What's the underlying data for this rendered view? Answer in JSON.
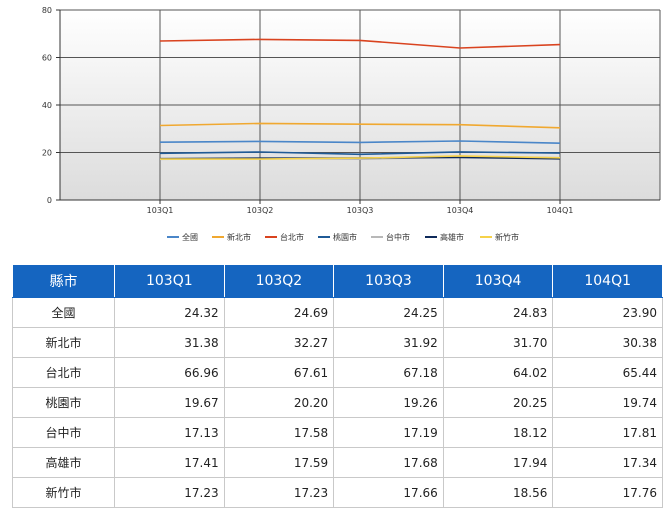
{
  "chart_data": {
    "type": "line",
    "categories": [
      "103Q1",
      "103Q2",
      "103Q3",
      "103Q4",
      "104Q1"
    ],
    "ylim": [
      0,
      80
    ],
    "yticks": [
      0,
      20,
      40,
      60,
      80
    ],
    "legend_position": "bottom",
    "grid": true,
    "series": [
      {
        "name": "全國",
        "color": "#4a86c8",
        "values": [
          24.32,
          24.69,
          24.25,
          24.83,
          23.9
        ]
      },
      {
        "name": "新北市",
        "color": "#f0a830",
        "values": [
          31.38,
          32.27,
          31.92,
          31.7,
          30.38
        ]
      },
      {
        "name": "台北市",
        "color": "#d9431f",
        "values": [
          66.96,
          67.61,
          67.18,
          64.02,
          65.44
        ]
      },
      {
        "name": "桃園市",
        "color": "#1f5a96",
        "values": [
          19.67,
          20.2,
          19.26,
          20.25,
          19.74
        ]
      },
      {
        "name": "台中市",
        "color": "#b8b8b8",
        "values": [
          17.13,
          17.58,
          17.19,
          18.12,
          17.81
        ]
      },
      {
        "name": "高雄市",
        "color": "#0e2a5a",
        "values": [
          17.41,
          17.59,
          17.68,
          17.94,
          17.34
        ]
      },
      {
        "name": "新竹市",
        "color": "#f6d24a",
        "values": [
          17.23,
          17.23,
          17.66,
          18.56,
          17.76
        ]
      }
    ]
  },
  "table": {
    "header": [
      "縣市",
      "103Q1",
      "103Q2",
      "103Q3",
      "103Q4",
      "104Q1"
    ],
    "rows": [
      [
        "全國",
        "24.32",
        "24.69",
        "24.25",
        "24.83",
        "23.90"
      ],
      [
        "新北市",
        "31.38",
        "32.27",
        "31.92",
        "31.70",
        "30.38"
      ],
      [
        "台北市",
        "66.96",
        "67.61",
        "67.18",
        "64.02",
        "65.44"
      ],
      [
        "桃園市",
        "19.67",
        "20.20",
        "19.26",
        "20.25",
        "19.74"
      ],
      [
        "台中市",
        "17.13",
        "17.58",
        "17.19",
        "18.12",
        "17.81"
      ],
      [
        "高雄市",
        "17.41",
        "17.59",
        "17.68",
        "17.94",
        "17.34"
      ],
      [
        "新竹市",
        "17.23",
        "17.23",
        "17.66",
        "18.56",
        "17.76"
      ]
    ]
  }
}
